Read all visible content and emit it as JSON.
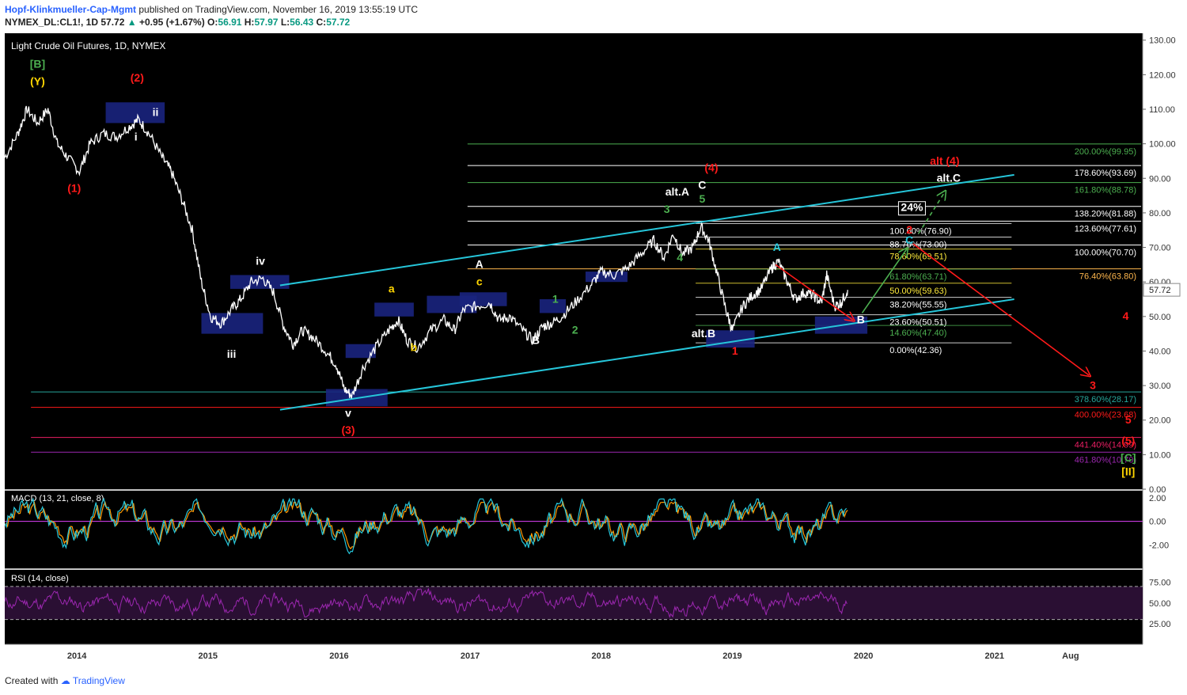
{
  "header": {
    "author": "Hopf-Klinkmueller-Cap-Mgmt",
    "published_text": "published on TradingView.com, November 16, 2019 13:55:19 UTC",
    "symbol": "NYMEX_DL:CL1!, 1D",
    "last": "57.72",
    "change": "+0.95 (+1.67%)",
    "o_label": "O:",
    "o": "56.91",
    "h_label": "H:",
    "h": "57.97",
    "l_label": "L:",
    "l": "56.43",
    "c_label": "C:",
    "c": "57.72"
  },
  "footer": {
    "created_with": "Created with",
    "brand": "TradingView"
  },
  "colors": {
    "background": "#000000",
    "price": "#ffffff",
    "channel": "#26c6da",
    "red_label": "#ff1a1a",
    "green_label": "#4caf50",
    "yellow_label": "#ffd600",
    "box": "#1a237e",
    "macd_line": "#26c6da",
    "signal_line": "#ff9800",
    "rsi_line": "#9c27b0",
    "rsi_band": "#2a0f33"
  },
  "chart_data": {
    "type": "line",
    "title": "Light Crude Oil Futures, 1D, NYMEX",
    "price_axis": {
      "ylim": [
        0,
        132
      ],
      "ticks": [
        "0.00",
        "10.00",
        "20.00",
        "30.00",
        "40.00",
        "50.00",
        "60.00",
        "70.00",
        "80.00",
        "90.00",
        "100.00",
        "110.00",
        "120.00",
        "130.00"
      ],
      "last_price": "57.72"
    },
    "time_axis": {
      "ticks": [
        {
          "label": "2014",
          "t": 2014.0
        },
        {
          "label": "2015",
          "t": 2015.0
        },
        {
          "label": "2016",
          "t": 2016.0
        },
        {
          "label": "2017",
          "t": 2017.0
        },
        {
          "label": "2018",
          "t": 2018.0
        },
        {
          "label": "2019",
          "t": 2019.0
        },
        {
          "label": "2020",
          "t": 2020.0
        },
        {
          "label": "2021",
          "t": 2021.0
        },
        {
          "label": "Aug",
          "t": 2021.58
        }
      ],
      "xlim": [
        2013.45,
        2022.13
      ]
    },
    "price_series": [
      [
        2013.45,
        96
      ],
      [
        2013.55,
        103
      ],
      [
        2013.62,
        110
      ],
      [
        2013.7,
        106
      ],
      [
        2013.78,
        110
      ],
      [
        2013.85,
        100
      ],
      [
        2013.93,
        96
      ],
      [
        2014.02,
        92
      ],
      [
        2014.1,
        100
      ],
      [
        2014.2,
        103
      ],
      [
        2014.3,
        102
      ],
      [
        2014.4,
        105
      ],
      [
        2014.47,
        107
      ],
      [
        2014.55,
        103
      ],
      [
        2014.65,
        96
      ],
      [
        2014.72,
        92
      ],
      [
        2014.8,
        84
      ],
      [
        2014.88,
        75
      ],
      [
        2014.95,
        60
      ],
      [
        2015.02,
        50
      ],
      [
        2015.1,
        48
      ],
      [
        2015.18,
        52
      ],
      [
        2015.25,
        55
      ],
      [
        2015.33,
        60
      ],
      [
        2015.42,
        61
      ],
      [
        2015.5,
        57
      ],
      [
        2015.58,
        47
      ],
      [
        2015.65,
        42
      ],
      [
        2015.72,
        46
      ],
      [
        2015.8,
        44
      ],
      [
        2015.9,
        40
      ],
      [
        2015.98,
        36
      ],
      [
        2016.04,
        29
      ],
      [
        2016.1,
        27
      ],
      [
        2016.18,
        35
      ],
      [
        2016.28,
        41
      ],
      [
        2016.38,
        46
      ],
      [
        2016.45,
        49
      ],
      [
        2016.52,
        43
      ],
      [
        2016.6,
        41
      ],
      [
        2016.7,
        46
      ],
      [
        2016.8,
        49
      ],
      [
        2016.88,
        46
      ],
      [
        2016.95,
        52
      ],
      [
        2017.05,
        53
      ],
      [
        2017.15,
        54
      ],
      [
        2017.22,
        49
      ],
      [
        2017.3,
        50
      ],
      [
        2017.4,
        46
      ],
      [
        2017.48,
        43
      ],
      [
        2017.55,
        47
      ],
      [
        2017.62,
        48
      ],
      [
        2017.7,
        50
      ],
      [
        2017.8,
        54
      ],
      [
        2017.92,
        59
      ],
      [
        2018.0,
        63
      ],
      [
        2018.1,
        62
      ],
      [
        2018.2,
        64
      ],
      [
        2018.3,
        68
      ],
      [
        2018.4,
        72
      ],
      [
        2018.48,
        67
      ],
      [
        2018.55,
        74
      ],
      [
        2018.62,
        68
      ],
      [
        2018.7,
        70
      ],
      [
        2018.76,
        76
      ],
      [
        2018.82,
        72
      ],
      [
        2018.88,
        63
      ],
      [
        2018.95,
        52
      ],
      [
        2019.0,
        46
      ],
      [
        2019.08,
        53
      ],
      [
        2019.15,
        56
      ],
      [
        2019.22,
        58
      ],
      [
        2019.3,
        64
      ],
      [
        2019.35,
        66
      ],
      [
        2019.42,
        60
      ],
      [
        2019.48,
        55
      ],
      [
        2019.55,
        57
      ],
      [
        2019.62,
        56
      ],
      [
        2019.68,
        54
      ],
      [
        2019.72,
        62
      ],
      [
        2019.78,
        53
      ],
      [
        2019.83,
        54
      ],
      [
        2019.88,
        57.7
      ]
    ],
    "fib_levels": [
      {
        "label": "200.00%(99.95)",
        "value": 99.95,
        "color": "#4caf50"
      },
      {
        "label": "178.60%(93.69)",
        "value": 93.69,
        "color": "#ffffff"
      },
      {
        "label": "161.80%(88.78)",
        "value": 88.78,
        "color": "#4caf50"
      },
      {
        "label": "138.20%(81.88)",
        "value": 81.88,
        "color": "#ffffff"
      },
      {
        "label": "123.60%(77.61)",
        "value": 77.61,
        "color": "#ffffff"
      },
      {
        "label": "100.00%(70.70)",
        "value": 70.7,
        "color": "#ffffff"
      },
      {
        "label": "76.40%(63.80)",
        "value": 63.8,
        "color": "#ffb74d"
      },
      {
        "label": "378.60%(28.17)",
        "value": 28.17,
        "color": "#26a69a"
      },
      {
        "label": "400.00%(23.68)",
        "value": 23.68,
        "color": "#ff1a1a"
      },
      {
        "label": "441.40%(14.99)",
        "value": 14.99,
        "color": "#e91e63"
      },
      {
        "label": "461.80%(10.70)",
        "value": 10.7,
        "color": "#9c27b0"
      }
    ],
    "retracement_levels": [
      {
        "label": "100.00%(76.90)",
        "value": 76.9,
        "color": "#ffffff"
      },
      {
        "label": "88.70%(73.00)",
        "value": 73.0,
        "color": "#ffffff"
      },
      {
        "label": "78.60%(69.51)",
        "value": 69.51,
        "color": "#ffeb3b"
      },
      {
        "label": "61.80%(63.71)",
        "value": 63.71,
        "color": "#4caf50"
      },
      {
        "label": "50.00%(59.63)",
        "value": 59.63,
        "color": "#ffeb3b"
      },
      {
        "label": "38.20%(55.55)",
        "value": 55.55,
        "color": "#ffffff"
      },
      {
        "label": "23.60%(50.51)",
        "value": 50.51,
        "color": "#ffffff"
      },
      {
        "label": "14.60%(47.40)",
        "value": 47.4,
        "color": "#4caf50"
      },
      {
        "label": "0.00%(42.36)",
        "value": 42.36,
        "color": "#ffffff"
      }
    ],
    "channel": {
      "upper": [
        [
          2015.55,
          59
        ],
        [
          2021.15,
          91
        ]
      ],
      "lower": [
        [
          2015.55,
          23
        ],
        [
          2021.15,
          55
        ]
      ]
    },
    "boxes": [
      {
        "t0": 2014.22,
        "t1": 2014.67,
        "p0": 106,
        "p1": 112
      },
      {
        "t0": 2014.95,
        "t1": 2015.42,
        "p0": 45,
        "p1": 51
      },
      {
        "t0": 2015.17,
        "t1": 2015.62,
        "p0": 58,
        "p1": 62
      },
      {
        "t0": 2015.9,
        "t1": 2016.37,
        "p0": 24,
        "p1": 29
      },
      {
        "t0": 2016.05,
        "t1": 2016.28,
        "p0": 38,
        "p1": 42
      },
      {
        "t0": 2016.27,
        "t1": 2016.57,
        "p0": 50,
        "p1": 54
      },
      {
        "t0": 2016.67,
        "t1": 2017.05,
        "p0": 51,
        "p1": 56
      },
      {
        "t0": 2016.92,
        "t1": 2017.28,
        "p0": 53,
        "p1": 57
      },
      {
        "t0": 2017.53,
        "t1": 2017.73,
        "p0": 51,
        "p1": 55
      },
      {
        "t0": 2017.88,
        "t1": 2018.2,
        "p0": 60,
        "p1": 63
      },
      {
        "t0": 2018.8,
        "t1": 2019.17,
        "p0": 41,
        "p1": 46
      },
      {
        "t0": 2019.63,
        "t1": 2020.03,
        "p0": 45,
        "p1": 50
      }
    ],
    "arrows": [
      {
        "from": [
          2019.33,
          65
        ],
        "to": [
          2019.92,
          49
        ],
        "color": "#ff1a1a",
        "dash": false
      },
      {
        "from": [
          2019.99,
          51
        ],
        "to": [
          2020.33,
          69.5
        ],
        "color": "#4caf50",
        "dash": false
      },
      {
        "from": [
          2020.38,
          71
        ],
        "to": [
          2021.72,
          33
        ],
        "color": "#ff1a1a",
        "dash": false
      },
      {
        "from": [
          2020.42,
          74
        ],
        "to": [
          2020.62,
          86
        ],
        "color": "#4caf50",
        "dash": true
      }
    ],
    "annotations": [
      {
        "text": "[B]",
        "t": 2013.7,
        "p": 122,
        "color": "#4caf50"
      },
      {
        "text": "(Y)",
        "t": 2013.7,
        "p": 117,
        "color": "#ffd600"
      },
      {
        "text": "(2)",
        "t": 2014.46,
        "p": 118,
        "color": "#ff1a1a"
      },
      {
        "text": "ii",
        "t": 2014.6,
        "p": 108,
        "color": "#ffffff"
      },
      {
        "text": "i",
        "t": 2014.45,
        "p": 101,
        "color": "#ffffff"
      },
      {
        "text": "(1)",
        "t": 2013.98,
        "p": 86,
        "color": "#ff1a1a"
      },
      {
        "text": "iv",
        "t": 2015.4,
        "p": 65,
        "color": "#ffffff"
      },
      {
        "text": "iii",
        "t": 2015.18,
        "p": 38,
        "color": "#ffffff"
      },
      {
        "text": "v",
        "t": 2016.07,
        "p": 21,
        "color": "#ffffff"
      },
      {
        "text": "(3)",
        "t": 2016.07,
        "p": 16,
        "color": "#ff1a1a"
      },
      {
        "text": "a",
        "t": 2016.4,
        "p": 57,
        "color": "#ffd600"
      },
      {
        "text": "b",
        "t": 2016.57,
        "p": 40,
        "color": "#ffd600"
      },
      {
        "text": "c",
        "t": 2017.07,
        "p": 59,
        "color": "#ffd600"
      },
      {
        "text": "A",
        "t": 2017.07,
        "p": 64,
        "color": "#ffffff"
      },
      {
        "text": "B",
        "t": 2017.5,
        "p": 42,
        "color": "#ffffff"
      },
      {
        "text": "1",
        "t": 2017.65,
        "p": 54,
        "color": "#4caf50"
      },
      {
        "text": "2",
        "t": 2017.8,
        "p": 45,
        "color": "#4caf50"
      },
      {
        "text": "3",
        "t": 2018.5,
        "p": 80,
        "color": "#4caf50"
      },
      {
        "text": "4",
        "t": 2018.6,
        "p": 66,
        "color": "#4caf50"
      },
      {
        "text": "5",
        "t": 2018.77,
        "p": 83,
        "color": "#4caf50"
      },
      {
        "text": "alt.A",
        "t": 2018.58,
        "p": 85,
        "color": "#ffffff"
      },
      {
        "text": "C",
        "t": 2018.77,
        "p": 87,
        "color": "#ffffff"
      },
      {
        "text": "(4)",
        "t": 2018.84,
        "p": 92,
        "color": "#ff1a1a"
      },
      {
        "text": "alt.B",
        "t": 2018.78,
        "p": 44,
        "color": "#ffffff"
      },
      {
        "text": "1",
        "t": 2019.02,
        "p": 39,
        "color": "#ff1a1a"
      },
      {
        "text": "A",
        "t": 2019.34,
        "p": 69,
        "color": "#26c6da"
      },
      {
        "text": "B",
        "t": 2019.98,
        "p": 48,
        "color": "#ffffff"
      },
      {
        "text": "C",
        "t": 2020.35,
        "p": 71,
        "color": "#26c6da"
      },
      {
        "text": "2",
        "t": 2020.35,
        "p": 74,
        "color": "#ff1a1a"
      },
      {
        "text": "24%",
        "t": 2020.37,
        "p": 80.5,
        "color": "#ffffff"
      },
      {
        "text": "alt.C",
        "t": 2020.65,
        "p": 89,
        "color": "#ffffff"
      },
      {
        "text": "alt (4)",
        "t": 2020.62,
        "p": 94,
        "color": "#ff1a1a"
      },
      {
        "text": "4",
        "t": 2022.0,
        "p": 49,
        "color": "#ff1a1a"
      },
      {
        "text": "3",
        "t": 2021.75,
        "p": 29,
        "color": "#ff1a1a"
      },
      {
        "text": "5",
        "t": 2022.02,
        "p": 19,
        "color": "#ff1a1a"
      },
      {
        "text": "(5)",
        "t": 2022.02,
        "p": 13,
        "color": "#ff1a1a"
      },
      {
        "text": "[C]",
        "t": 2022.02,
        "p": 8,
        "color": "#4caf50"
      },
      {
        "text": "[II]",
        "t": 2022.02,
        "p": 4,
        "color": "#ffd600"
      }
    ],
    "macd": {
      "title": "MACD (13, 21, close, 8)",
      "ticks": [
        "2.00",
        "0.00",
        "-2.00"
      ],
      "ylim": [
        -4,
        2.6
      ]
    },
    "rsi": {
      "title": "RSI (14, close)",
      "ticks": [
        "75.00",
        "50.00",
        "25.00"
      ],
      "ylim": [
        0,
        90
      ],
      "upper": 70,
      "lower": 30
    }
  }
}
